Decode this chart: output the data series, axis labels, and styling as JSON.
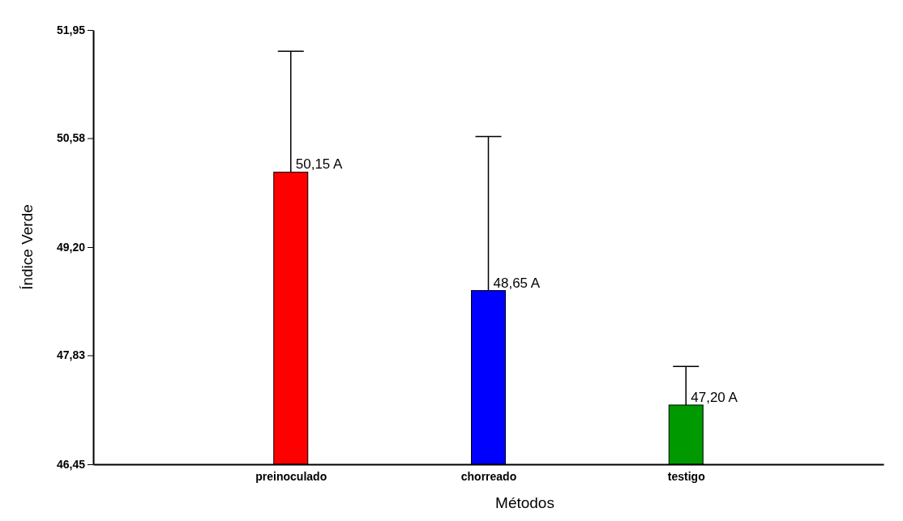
{
  "chart_data": {
    "type": "bar",
    "xlabel": "Métodos",
    "ylabel": "Índice Verde",
    "categories": [
      "preinoculado",
      "chorreado",
      "testigo"
    ],
    "values": [
      50.15,
      48.65,
      47.2
    ],
    "colors": [
      "#ff0000",
      "#0000ff",
      "#009900"
    ],
    "errors": [
      [
        50.15,
        51.68
      ],
      [
        48.65,
        50.6
      ],
      [
        47.2,
        47.69
      ]
    ],
    "value_labels": [
      "50,15 A",
      "48,65 A",
      "47,20 A"
    ],
    "ylim": [
      46.45,
      51.95
    ],
    "yticks": [
      {
        "value": 46.45,
        "label": "46,45"
      },
      {
        "value": 47.83,
        "label": "47,83"
      },
      {
        "value": 49.2,
        "label": "49,20"
      },
      {
        "value": 50.58,
        "label": "50,58"
      },
      {
        "value": 51.95,
        "label": "51,95"
      }
    ],
    "grid": false,
    "legend": false
  }
}
